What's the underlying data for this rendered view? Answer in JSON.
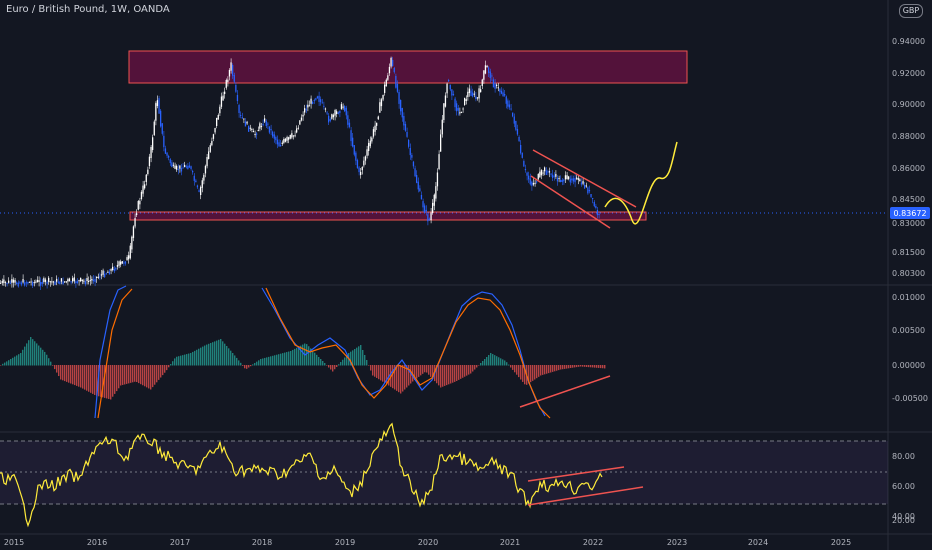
{
  "header": {
    "symbol_title": "Euro / British Pound, 1W, OANDA",
    "currency_badge": "GBP"
  },
  "price_pane": {
    "ticks": [
      "0.94000",
      "0.92000",
      "0.90000",
      "0.88000",
      "0.86000",
      "0.84500",
      "0.83000",
      "0.81500",
      "0.80300"
    ],
    "current_price": "0.83672",
    "current_price_color": "#2962ff"
  },
  "macd_pane": {
    "ticks": [
      "0.01000",
      "0.00500",
      "0.00000",
      "-0.00500"
    ]
  },
  "rsi_pane": {
    "ticks": [
      "80.00",
      "60.00",
      "40.00",
      "20.00"
    ]
  },
  "time_axis": {
    "labels": [
      "2015",
      "2016",
      "2017",
      "2018",
      "2019",
      "2020",
      "2021",
      "2022",
      "2023",
      "2024",
      "2025"
    ]
  },
  "colors": {
    "background": "#131722",
    "bull_candle": "#ffffff",
    "bear_candle": "#2962ff",
    "zone_fill": "#880e4f",
    "zone_border": "#ef5350",
    "trendline": "#ef5350",
    "projection": "#ffeb3b",
    "rsi_line": "#ffeb3b",
    "macd_line": "#2962ff",
    "signal_line": "#ff6d00",
    "hist_up": "#26a69a",
    "hist_down": "#ef5350"
  }
}
